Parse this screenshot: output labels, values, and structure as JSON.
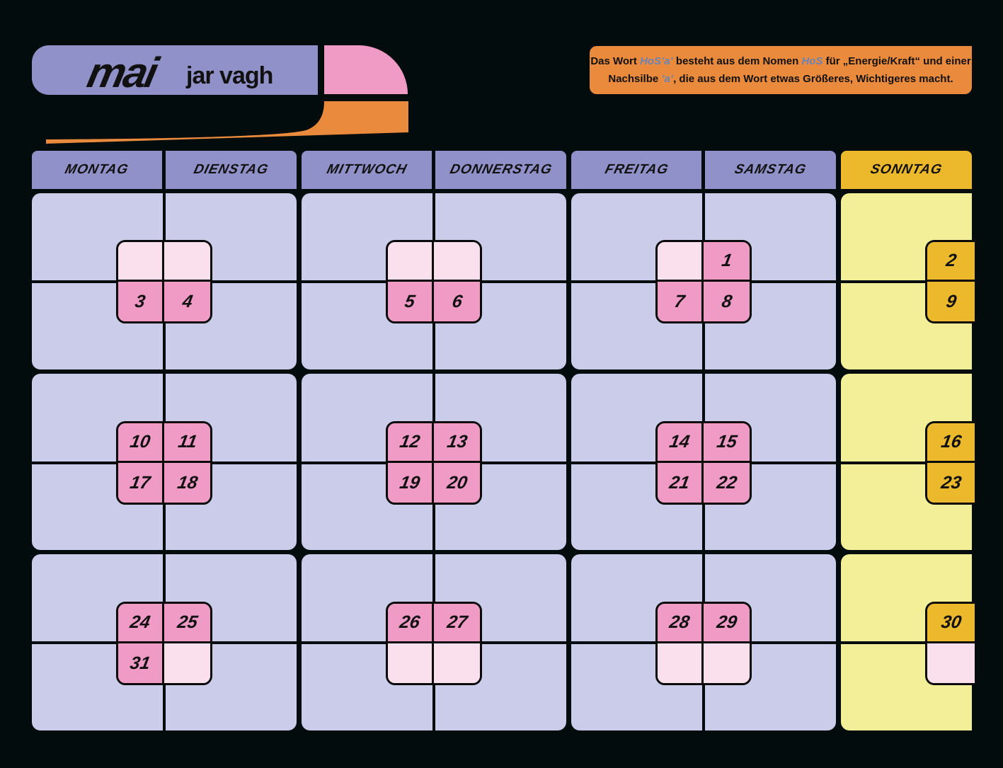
{
  "header": {
    "month": "mai",
    "month_klingon": "jar vagh",
    "info_line1_a": "Das Wort ",
    "info_line1_word1": "HoS’a’",
    "info_line1_b": " besteht aus dem Nomen ",
    "info_line1_word2": "HoS",
    "info_line1_c": " für „Energie/Kraft“ und einer",
    "info_line2_a": "Nachsilbe ",
    "info_line2_word": "’a’",
    "info_line2_b": ", die aus dem Wort etwas Größeres, Wichtigeres macht."
  },
  "days": [
    "montag",
    "dienstag",
    "mittwoch",
    "donnerstag",
    "freitag",
    "samstag",
    "sonntag"
  ],
  "weeks": [
    {
      "mo_di": [
        "",
        "",
        "3",
        "4"
      ],
      "mi_do": [
        "",
        "",
        "5",
        "6"
      ],
      "fr_sa": [
        "",
        "1",
        "7",
        "8"
      ],
      "so": [
        "2",
        "9"
      ]
    },
    {
      "mo_di": [
        "10",
        "11",
        "17",
        "18"
      ],
      "mi_do": [
        "12",
        "13",
        "19",
        "20"
      ],
      "fr_sa": [
        "14",
        "15",
        "21",
        "22"
      ],
      "so": [
        "16",
        "23"
      ]
    },
    {
      "mo_di": [
        "24",
        "25",
        "31",
        ""
      ],
      "mi_do": [
        "26",
        "27",
        "",
        ""
      ],
      "fr_sa": [
        "28",
        "29",
        "",
        ""
      ],
      "so": [
        "30",
        ""
      ]
    }
  ],
  "colors": {
    "background": "#030c0c",
    "lavender": "#9191c9",
    "cell_lavender": "#cbcbea",
    "pink": "#ef9bc6",
    "pink_light": "#fadfec",
    "orange": "#ea8a3d",
    "gold": "#ecb92c",
    "sunday_yellow": "#f3ef99"
  }
}
